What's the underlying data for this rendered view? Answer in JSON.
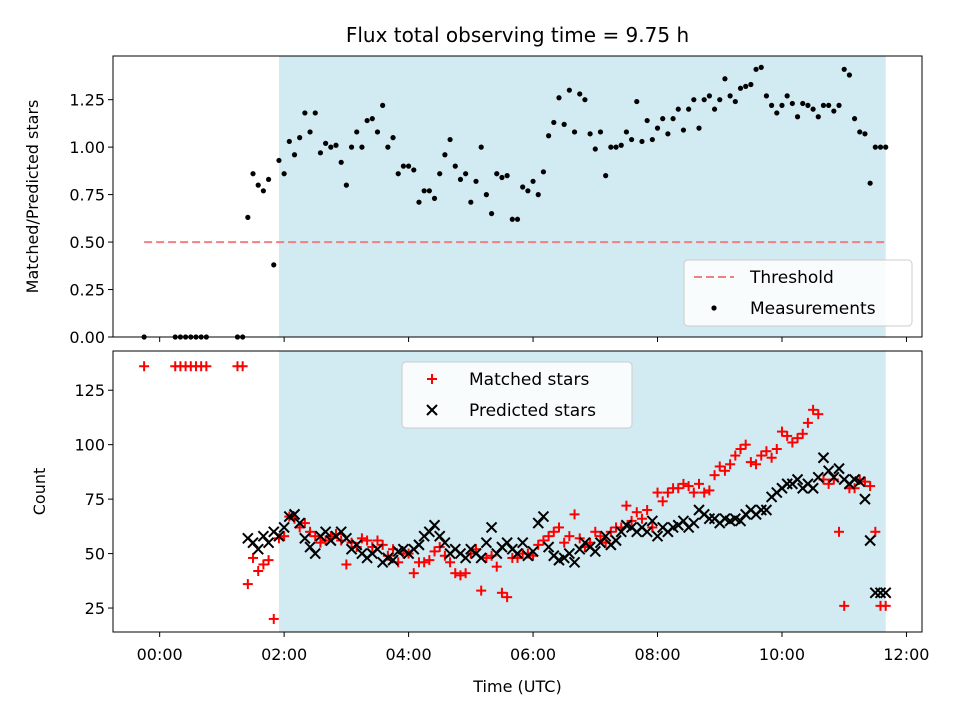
{
  "chart_data": [
    {
      "type": "scatter",
      "title": "Flux total observing time = 9.75 h",
      "xlabel": "",
      "ylabel": "Matched/Predicted stars",
      "xlim": [
        "-00:45",
        "12:15"
      ],
      "ylim": [
        0,
        1.48
      ],
      "y_ticks": [
        0.0,
        0.25,
        0.5,
        0.75,
        1.0,
        1.25
      ],
      "y_tick_labels": [
        "0.00",
        "0.25",
        "0.50",
        "0.75",
        "1.00",
        "1.25"
      ],
      "shaded_interval": [
        "01:55",
        "11:40"
      ],
      "shaded_color": "#add8e6",
      "legend_position": "lower-right",
      "threshold": {
        "name": "Threshold",
        "y": 0.5,
        "x_from": "-00:15",
        "x_to": "11:40",
        "color": "#f08080",
        "style": "dashed"
      },
      "series": [
        {
          "name": "Measurements",
          "marker": "dot",
          "color": "#000000",
          "x": [
            "-00:15",
            "00:15",
            "00:20",
            "00:25",
            "00:30",
            "00:35",
            "00:40",
            "00:45",
            "01:15",
            "01:20",
            "01:25",
            "01:30",
            "01:35",
            "01:40",
            "01:45",
            "01:50",
            "01:55",
            "02:00",
            "02:05",
            "02:10",
            "02:15",
            "02:20",
            "02:25",
            "02:30",
            "02:35",
            "02:40",
            "02:45",
            "02:50",
            "02:55",
            "03:00",
            "03:05",
            "03:10",
            "03:15",
            "03:20",
            "03:25",
            "03:30",
            "03:35",
            "03:40",
            "03:45",
            "03:50",
            "03:55",
            "04:00",
            "04:05",
            "04:10",
            "04:15",
            "04:20",
            "04:25",
            "04:30",
            "04:35",
            "04:40",
            "04:45",
            "04:50",
            "04:55",
            "05:00",
            "05:05",
            "05:10",
            "05:15",
            "05:20",
            "05:25",
            "05:30",
            "05:35",
            "05:40",
            "05:45",
            "05:50",
            "05:55",
            "06:00",
            "06:05",
            "06:10",
            "06:15",
            "06:20",
            "06:25",
            "06:30",
            "06:35",
            "06:40",
            "06:45",
            "06:50",
            "06:55",
            "07:00",
            "07:05",
            "07:10",
            "07:15",
            "07:20",
            "07:25",
            "07:30",
            "07:35",
            "07:40",
            "07:45",
            "07:50",
            "07:55",
            "08:00",
            "08:05",
            "08:10",
            "08:15",
            "08:20",
            "08:25",
            "08:30",
            "08:35",
            "08:40",
            "08:45",
            "08:50",
            "08:55",
            "09:00",
            "09:05",
            "09:10",
            "09:15",
            "09:20",
            "09:25",
            "09:30",
            "09:35",
            "09:40",
            "09:45",
            "09:50",
            "09:55",
            "10:00",
            "10:05",
            "10:10",
            "10:15",
            "10:20",
            "10:25",
            "10:30",
            "10:35",
            "10:40",
            "10:45",
            "10:50",
            "10:55",
            "11:00",
            "11:05",
            "11:10",
            "11:15",
            "11:20",
            "11:25",
            "11:30",
            "11:35",
            "11:40"
          ],
          "y": [
            0.0,
            0.0,
            0.0,
            0.0,
            0.0,
            0.0,
            0.0,
            0.0,
            0.0,
            0.0,
            0.63,
            0.86,
            0.8,
            0.77,
            0.83,
            0.38,
            0.93,
            0.86,
            1.03,
            0.96,
            1.05,
            1.18,
            1.08,
            1.18,
            0.97,
            1.02,
            1.0,
            1.01,
            0.92,
            0.8,
            1.0,
            1.08,
            1.0,
            1.14,
            1.15,
            1.08,
            1.22,
            1.0,
            1.05,
            0.86,
            0.9,
            0.9,
            0.88,
            0.71,
            0.77,
            0.77,
            0.73,
            0.86,
            0.96,
            1.04,
            0.9,
            0.83,
            0.86,
            0.71,
            0.82,
            1.0,
            0.75,
            0.65,
            0.86,
            0.84,
            0.85,
            0.62,
            0.62,
            0.79,
            0.77,
            0.82,
            0.75,
            0.87,
            1.06,
            1.13,
            1.26,
            1.12,
            1.3,
            1.08,
            1.28,
            1.25,
            1.07,
            0.99,
            1.08,
            0.85,
            1.0,
            1.0,
            1.01,
            1.08,
            1.04,
            1.24,
            1.03,
            1.14,
            1.04,
            1.1,
            1.15,
            1.07,
            1.15,
            1.2,
            1.09,
            1.2,
            1.25,
            1.1,
            1.25,
            1.27,
            1.2,
            1.25,
            1.36,
            1.27,
            1.24,
            1.31,
            1.32,
            1.33,
            1.41,
            1.42,
            1.27,
            1.22,
            1.18,
            1.22,
            1.27,
            1.23,
            1.16,
            1.23,
            1.22,
            1.2,
            1.16,
            1.22,
            1.22,
            1.19,
            1.22,
            1.41,
            1.38,
            1.15,
            1.08,
            1.07,
            0.81,
            1.0,
            1.0,
            1.0
          ]
        }
      ]
    },
    {
      "type": "scatter",
      "title": "",
      "xlabel": "Time (UTC)",
      "ylabel": "Count",
      "xlim": [
        "-00:45",
        "12:15"
      ],
      "ylim": [
        14,
        143
      ],
      "y_ticks": [
        25,
        50,
        75,
        100,
        125
      ],
      "y_tick_labels": [
        "25",
        "50",
        "75",
        "100",
        "125"
      ],
      "x_ticks": [
        "00:00",
        "02:00",
        "04:00",
        "06:00",
        "08:00",
        "10:00",
        "12:00"
      ],
      "x_tick_labels": [
        "00:00",
        "02:00",
        "04:00",
        "06:00",
        "08:00",
        "10:00",
        "12:00"
      ],
      "shaded_interval": [
        "01:55",
        "11:40"
      ],
      "shaded_color": "#add8e6",
      "legend_position": "upper-center",
      "series": [
        {
          "name": "Matched stars",
          "marker": "plus",
          "color": "#ff0000",
          "x": [
            "-00:15",
            "00:15",
            "00:20",
            "00:25",
            "00:30",
            "00:35",
            "00:40",
            "00:45",
            "01:15",
            "01:20",
            "01:25",
            "01:30",
            "01:35",
            "01:40",
            "01:45",
            "01:50",
            "01:55",
            "02:00",
            "02:05",
            "02:10",
            "02:15",
            "02:20",
            "02:25",
            "02:30",
            "02:35",
            "02:40",
            "02:45",
            "02:50",
            "02:55",
            "03:00",
            "03:05",
            "03:10",
            "03:15",
            "03:20",
            "03:25",
            "03:30",
            "03:35",
            "03:40",
            "03:45",
            "03:50",
            "03:55",
            "04:00",
            "04:05",
            "04:10",
            "04:15",
            "04:20",
            "04:25",
            "04:30",
            "04:35",
            "04:40",
            "04:45",
            "04:50",
            "04:55",
            "05:00",
            "05:05",
            "05:10",
            "05:15",
            "05:20",
            "05:25",
            "05:30",
            "05:35",
            "05:40",
            "05:45",
            "05:50",
            "05:55",
            "06:00",
            "06:05",
            "06:10",
            "06:15",
            "06:20",
            "06:25",
            "06:30",
            "06:35",
            "06:40",
            "06:45",
            "06:50",
            "06:55",
            "07:00",
            "07:05",
            "07:10",
            "07:15",
            "07:20",
            "07:25",
            "07:30",
            "07:35",
            "07:40",
            "07:45",
            "07:50",
            "07:55",
            "08:00",
            "08:05",
            "08:10",
            "08:15",
            "08:20",
            "08:25",
            "08:30",
            "08:35",
            "08:40",
            "08:45",
            "08:50",
            "08:55",
            "09:00",
            "09:05",
            "09:10",
            "09:15",
            "09:20",
            "09:25",
            "09:30",
            "09:35",
            "09:40",
            "09:45",
            "09:50",
            "09:55",
            "10:00",
            "10:05",
            "10:10",
            "10:15",
            "10:20",
            "10:25",
            "10:30",
            "10:35",
            "10:40",
            "10:45",
            "10:50",
            "10:55",
            "11:00",
            "11:05",
            "11:10",
            "11:15",
            "11:20",
            "11:25",
            "11:30",
            "11:35",
            "11:40"
          ],
          "y": [
            136,
            136,
            136,
            136,
            136,
            136,
            136,
            136,
            136,
            136,
            36,
            48,
            42,
            45,
            47,
            20,
            57,
            58,
            67,
            66,
            62,
            64,
            60,
            58,
            55,
            56,
            58,
            59,
            56,
            45,
            55,
            53,
            57,
            56,
            53,
            56,
            54,
            49,
            52,
            46,
            50,
            50,
            41,
            46,
            46,
            47,
            51,
            53,
            49,
            46,
            41,
            40,
            41,
            50,
            52,
            33,
            48,
            49,
            44,
            32,
            30,
            48,
            48,
            50,
            50,
            49,
            54,
            56,
            58,
            60,
            62,
            55,
            58,
            68,
            57,
            53,
            55,
            60,
            58,
            55,
            60,
            62,
            62,
            72,
            65,
            69,
            66,
            70,
            62,
            78,
            74,
            78,
            80,
            80,
            82,
            81,
            78,
            82,
            78,
            79,
            86,
            90,
            88,
            91,
            95,
            98,
            100,
            92,
            91,
            95,
            97,
            94,
            98,
            106,
            104,
            101,
            103,
            105,
            110,
            116,
            114,
            84,
            82,
            84,
            60,
            26,
            80,
            80,
            84,
            83,
            81,
            60,
            26,
            26
          ]
        },
        {
          "name": "Predicted stars",
          "marker": "x",
          "color": "#000000",
          "x": [
            "01:25",
            "01:30",
            "01:35",
            "01:40",
            "01:45",
            "01:50",
            "01:55",
            "02:00",
            "02:05",
            "02:10",
            "02:15",
            "02:20",
            "02:25",
            "02:30",
            "02:35",
            "02:40",
            "02:45",
            "02:50",
            "02:55",
            "03:00",
            "03:05",
            "03:10",
            "03:15",
            "03:20",
            "03:25",
            "03:30",
            "03:35",
            "03:40",
            "03:45",
            "03:50",
            "03:55",
            "04:00",
            "04:05",
            "04:10",
            "04:15",
            "04:20",
            "04:25",
            "04:30",
            "04:35",
            "04:40",
            "04:45",
            "04:50",
            "04:55",
            "05:00",
            "05:05",
            "05:10",
            "05:15",
            "05:20",
            "05:25",
            "05:30",
            "05:35",
            "05:40",
            "05:45",
            "05:50",
            "05:55",
            "06:00",
            "06:05",
            "06:10",
            "06:15",
            "06:20",
            "06:25",
            "06:30",
            "06:35",
            "06:40",
            "06:45",
            "06:50",
            "06:55",
            "07:00",
            "07:05",
            "07:10",
            "07:15",
            "07:20",
            "07:25",
            "07:30",
            "07:35",
            "07:40",
            "07:45",
            "07:50",
            "07:55",
            "08:00",
            "08:05",
            "08:10",
            "08:15",
            "08:20",
            "08:25",
            "08:30",
            "08:35",
            "08:40",
            "08:45",
            "08:50",
            "08:55",
            "09:00",
            "09:05",
            "09:10",
            "09:15",
            "09:20",
            "09:25",
            "09:30",
            "09:35",
            "09:40",
            "09:45",
            "09:50",
            "09:55",
            "10:00",
            "10:05",
            "10:10",
            "10:15",
            "10:20",
            "10:25",
            "10:30",
            "10:35",
            "10:40",
            "10:45",
            "10:50",
            "10:55",
            "11:00",
            "11:05",
            "11:10",
            "11:15",
            "11:20",
            "11:25",
            "11:30",
            "11:35",
            "11:40"
          ],
          "y": [
            57,
            55,
            52,
            58,
            55,
            60,
            58,
            62,
            67,
            68,
            64,
            57,
            53,
            50,
            58,
            60,
            56,
            58,
            60,
            57,
            52,
            54,
            50,
            48,
            50,
            52,
            46,
            48,
            47,
            51,
            52,
            50,
            52,
            54,
            58,
            60,
            63,
            58,
            55,
            50,
            52,
            50,
            48,
            52,
            50,
            48,
            55,
            62,
            50,
            53,
            55,
            52,
            50,
            55,
            49,
            51,
            64,
            67,
            53,
            49,
            47,
            48,
            50,
            46,
            52,
            55,
            53,
            51,
            55,
            58,
            54,
            56,
            60,
            63,
            62,
            60,
            62,
            60,
            65,
            58,
            62,
            60,
            62,
            63,
            65,
            62,
            64,
            70,
            68,
            66,
            66,
            64,
            66,
            65,
            66,
            65,
            68,
            70,
            68,
            70,
            70,
            76,
            78,
            80,
            82,
            82,
            84,
            80,
            82,
            80,
            85,
            94,
            88,
            85,
            89,
            84,
            82,
            84,
            83,
            75,
            56,
            32,
            32,
            32
          ]
        }
      ]
    }
  ]
}
